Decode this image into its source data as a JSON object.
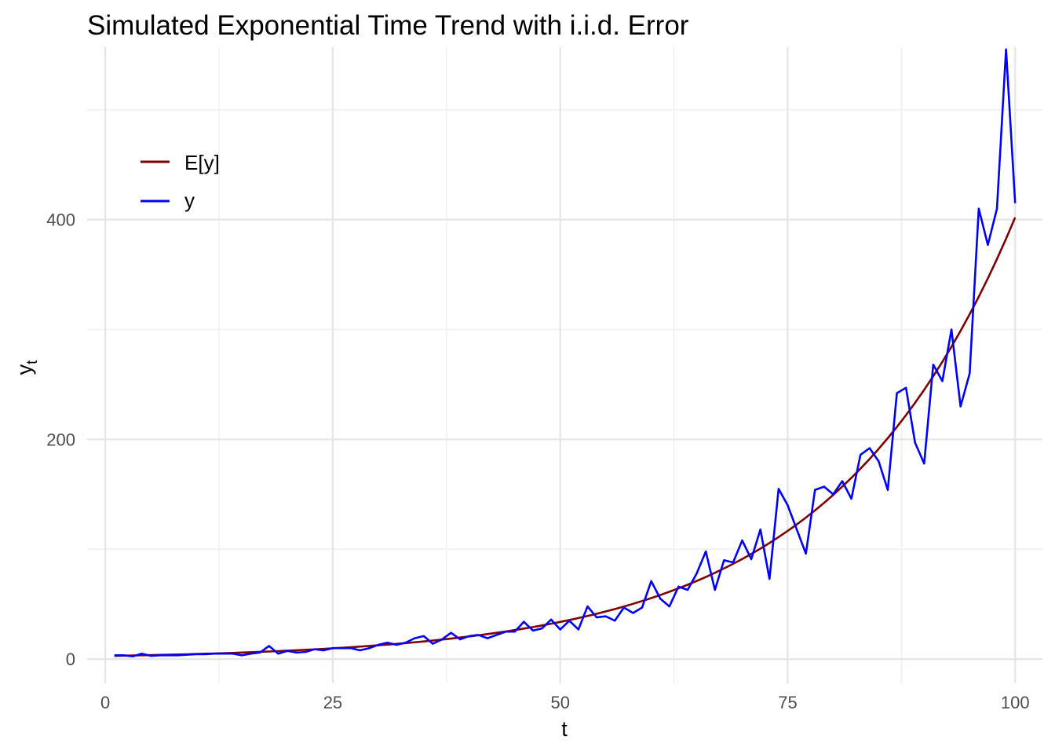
{
  "chart_data": {
    "type": "line",
    "title": "Simulated Exponential Time Trend with i.i.d. Error",
    "xlabel": "t",
    "ylabel": {
      "base": "y",
      "subscript": "t"
    },
    "xlim": [
      -2,
      103
    ],
    "ylim": [
      -22,
      557
    ],
    "xticks": [
      0,
      25,
      50,
      75,
      100
    ],
    "yticks": [
      0,
      200,
      400
    ],
    "grid": true,
    "legend": {
      "position": "top-left",
      "entries": [
        "E[y]",
        "y"
      ]
    },
    "colors": {
      "E[y]": "#7f0000",
      "y": "#0000ff"
    },
    "expected": {
      "name": "E[y]",
      "start": 3.0,
      "end": 402,
      "t_start": 1,
      "t_end": 100
    },
    "x": [
      1,
      2,
      3,
      4,
      5,
      6,
      7,
      8,
      9,
      10,
      11,
      12,
      13,
      14,
      15,
      16,
      17,
      18,
      19,
      20,
      21,
      22,
      23,
      24,
      25,
      26,
      27,
      28,
      29,
      30,
      31,
      32,
      33,
      34,
      35,
      36,
      37,
      38,
      39,
      40,
      41,
      42,
      43,
      44,
      45,
      46,
      47,
      48,
      49,
      50,
      51,
      52,
      53,
      54,
      55,
      56,
      57,
      58,
      59,
      60,
      61,
      62,
      63,
      64,
      65,
      66,
      67,
      68,
      69,
      70,
      71,
      72,
      73,
      74,
      75,
      76,
      77,
      78,
      79,
      80,
      81,
      82,
      83,
      84,
      85,
      86,
      87,
      88,
      89,
      90,
      91,
      92,
      93,
      94,
      95,
      96,
      97,
      98,
      99,
      100
    ],
    "series": [
      {
        "name": "y",
        "values": [
          3.5,
          3.5,
          2.5,
          5,
          3,
          3.5,
          3.5,
          3.5,
          4,
          4.5,
          4.5,
          5,
          5,
          5,
          3.5,
          5,
          6,
          12,
          5,
          7.5,
          6,
          6.5,
          9,
          8,
          10,
          10,
          10,
          8,
          10,
          13,
          15,
          13,
          15,
          19,
          21,
          14,
          18,
          24,
          18,
          21,
          22,
          19,
          22,
          25,
          25,
          34,
          26,
          28,
          36,
          27,
          35,
          27,
          48,
          38,
          39,
          35,
          47,
          42,
          47,
          71,
          55,
          48,
          66,
          63,
          78,
          98,
          63,
          90,
          88,
          108,
          91,
          118,
          73,
          155,
          140,
          118,
          96,
          154,
          157,
          150,
          162,
          146,
          186,
          192,
          180,
          154,
          242,
          247,
          197,
          178,
          268,
          253,
          300,
          230,
          260,
          410,
          377,
          410,
          555,
          415
        ]
      }
    ]
  }
}
